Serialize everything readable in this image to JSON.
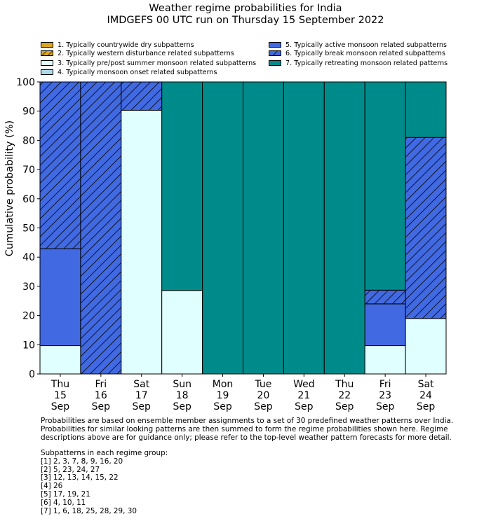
{
  "title_line1": "Weather regime probabilities for India",
  "title_line2": "IMDGEFS 00 UTC run on Thursday 15 September 2022",
  "legend": [
    {
      "label": "1. Typically countrywide dry subpatterns",
      "color": "#DAA520",
      "hatch": false
    },
    {
      "label": "2. Typically western disturbance related subpatterns",
      "color": "#DAA520",
      "hatch": true
    },
    {
      "label": "3. Typically pre/post summer monsoon related subpatterns",
      "color": "#E0FFFF",
      "hatch": false
    },
    {
      "label": "4. Typically monsoon onset related subpatterns",
      "color": "#ADD8E6",
      "hatch": false
    },
    {
      "label": "5. Typically active monsoon related subpatterns",
      "color": "#4169E1",
      "hatch": false
    },
    {
      "label": "6. Typically break monsoon related subpatterns",
      "color": "#4169E1",
      "hatch": true
    },
    {
      "label": "7. Typically retreating monsoon related patterns",
      "color": "#008B8B",
      "hatch": false
    }
  ],
  "notes": [
    "Probabilities are based on ensemble member assignments to a set of 30 predefined weather patterns over India.",
    "Probabilities for similar looking patterns are then summed to form the regime probabilities shown here. Regime",
    "descriptions above are for guidance only; please refer to the top-level weather pattern forecasts for more detail."
  ],
  "subpatterns_title": "Subpatterns in each regime group:",
  "subpatterns": [
    "[1] 2, 3, 7, 8, 9, 16, 20",
    "[2] 5, 23, 24, 27",
    "[3] 12, 13, 14, 15, 22",
    "[4] 26",
    "[5] 17, 19, 21",
    "[6] 4, 10, 11",
    "[7] 1, 6, 18, 25, 28, 29, 30"
  ],
  "chart_data": {
    "type": "bar",
    "stacked": true,
    "ylabel": "Cumulative probability (%)",
    "ylim": [
      0,
      100
    ],
    "yticks": [
      0,
      10,
      20,
      30,
      40,
      50,
      60,
      70,
      80,
      90,
      100
    ],
    "categories": [
      [
        "Thu",
        "15",
        "Sep"
      ],
      [
        "Fri",
        "16",
        "Sep"
      ],
      [
        "Sat",
        "17",
        "Sep"
      ],
      [
        "Sun",
        "18",
        "Sep"
      ],
      [
        "Mon",
        "19",
        "Sep"
      ],
      [
        "Tue",
        "20",
        "Sep"
      ],
      [
        "Wed",
        "21",
        "Sep"
      ],
      [
        "Thu",
        "22",
        "Sep"
      ],
      [
        "Fri",
        "23",
        "Sep"
      ],
      [
        "Sat",
        "24",
        "Sep"
      ]
    ],
    "series": [
      {
        "name": "1. Typically countrywide dry subpatterns",
        "values": [
          0,
          0,
          0,
          0,
          0,
          0,
          0,
          0,
          0,
          0
        ]
      },
      {
        "name": "2. Typically western disturbance related subpatterns",
        "values": [
          0,
          0,
          0,
          0,
          0,
          0,
          0,
          0,
          0,
          0
        ]
      },
      {
        "name": "3. Typically pre/post summer monsoon related subpatterns",
        "values": [
          9.7,
          0,
          90.3,
          28.6,
          0,
          0,
          0,
          0,
          9.7,
          19.0
        ]
      },
      {
        "name": "4. Typically monsoon onset related subpatterns",
        "values": [
          0,
          0,
          0,
          0,
          0,
          0,
          0,
          0,
          0,
          0
        ]
      },
      {
        "name": "5. Typically active monsoon related subpatterns",
        "values": [
          33.2,
          0,
          0,
          0,
          0,
          0,
          0,
          0,
          14.3,
          0
        ]
      },
      {
        "name": "6. Typically break monsoon related subpatterns",
        "values": [
          57.1,
          100,
          9.7,
          0,
          0,
          0,
          0,
          0,
          4.7,
          62.0
        ]
      },
      {
        "name": "7. Typically retreating monsoon related patterns",
        "values": [
          0,
          0,
          0,
          71.4,
          100,
          100,
          100,
          100,
          71.3,
          19.0
        ]
      }
    ]
  }
}
